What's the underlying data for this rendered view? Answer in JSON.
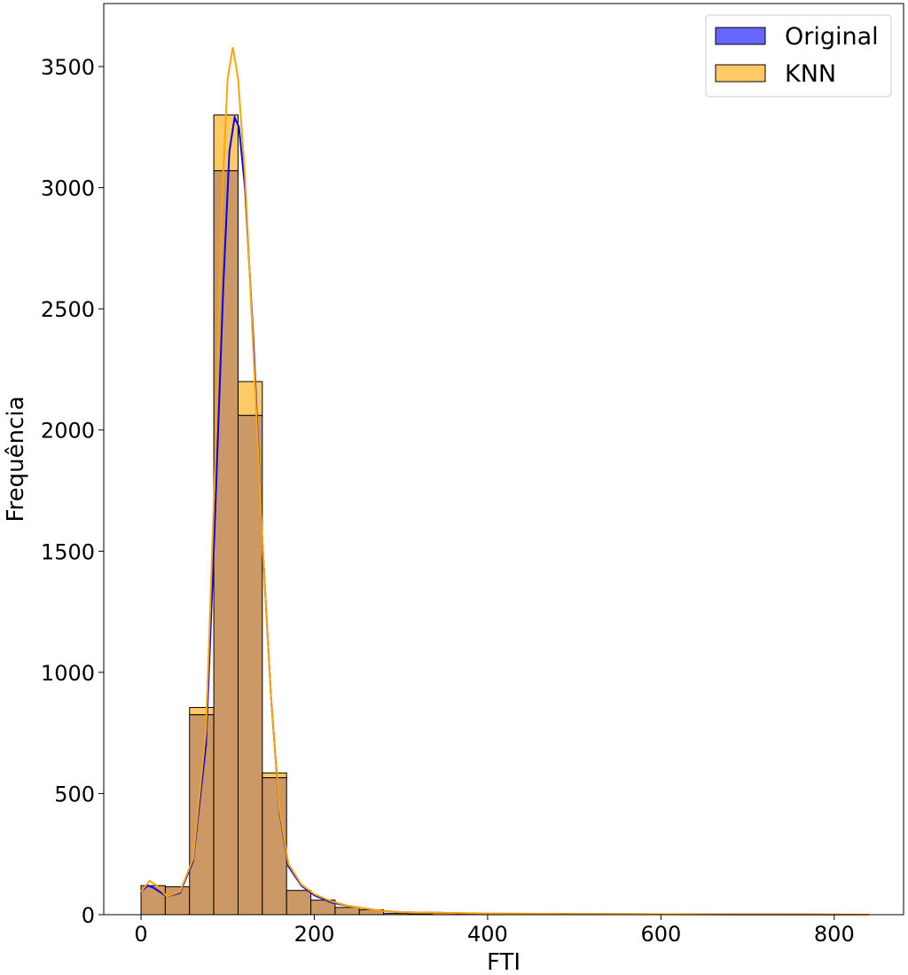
{
  "chart_data": {
    "type": "bar",
    "subtype": "histogram-with-kde",
    "title": "",
    "xlabel": "FTI",
    "ylabel": "Frequência",
    "xlim": [
      -43,
      880
    ],
    "ylim": [
      0,
      3760
    ],
    "x_ticks": [
      0,
      200,
      400,
      600,
      800
    ],
    "y_ticks": [
      0,
      500,
      1000,
      1500,
      2000,
      2500,
      3000,
      3500
    ],
    "grid": false,
    "legend_position": "top-right",
    "bin_width": 28,
    "bin_start": 0,
    "colors": {
      "original": "#0000ff",
      "knn": "#ffa500",
      "overlap": "#cc9966",
      "edge": "#000000"
    },
    "series": [
      {
        "name": "Original",
        "color": "#0000ff",
        "values": [
          120,
          115,
          825,
          3070,
          2060,
          565,
          100,
          60,
          30,
          20,
          5,
          3,
          8,
          4,
          2,
          1,
          1,
          1,
          1,
          0,
          1,
          0,
          0,
          0,
          0,
          0,
          0,
          0,
          0,
          0
        ],
        "kde": [
          [
            0,
            95
          ],
          [
            8,
            120
          ],
          [
            15,
            110
          ],
          [
            30,
            75
          ],
          [
            45,
            90
          ],
          [
            60,
            220
          ],
          [
            75,
            700
          ],
          [
            85,
            1600
          ],
          [
            95,
            2600
          ],
          [
            102,
            3150
          ],
          [
            108,
            3290
          ],
          [
            113,
            3250
          ],
          [
            120,
            3000
          ],
          [
            130,
            2350
          ],
          [
            140,
            1550
          ],
          [
            150,
            900
          ],
          [
            160,
            420
          ],
          [
            170,
            200
          ],
          [
            185,
            120
          ],
          [
            200,
            80
          ],
          [
            220,
            50
          ],
          [
            240,
            35
          ],
          [
            260,
            25
          ],
          [
            280,
            15
          ],
          [
            300,
            10
          ],
          [
            340,
            8
          ],
          [
            400,
            4
          ],
          [
            500,
            3
          ],
          [
            600,
            2
          ],
          [
            700,
            1
          ],
          [
            840,
            0
          ]
        ]
      },
      {
        "name": "KNN",
        "color": "#ffa500",
        "values": [
          120,
          115,
          855,
          3300,
          2200,
          585,
          100,
          60,
          30,
          20,
          5,
          3,
          8,
          4,
          2,
          1,
          1,
          1,
          1,
          0,
          1,
          0,
          0,
          0,
          0,
          0,
          0,
          0,
          0,
          0
        ],
        "kde": [
          [
            0,
            95
          ],
          [
            10,
            140
          ],
          [
            18,
            120
          ],
          [
            30,
            75
          ],
          [
            45,
            95
          ],
          [
            60,
            230
          ],
          [
            75,
            760
          ],
          [
            85,
            1800
          ],
          [
            93,
            2900
          ],
          [
            100,
            3450
          ],
          [
            106,
            3580
          ],
          [
            112,
            3450
          ],
          [
            120,
            3050
          ],
          [
            130,
            2300
          ],
          [
            140,
            1550
          ],
          [
            150,
            900
          ],
          [
            160,
            430
          ],
          [
            170,
            210
          ],
          [
            185,
            125
          ],
          [
            200,
            85
          ],
          [
            220,
            55
          ],
          [
            240,
            35
          ],
          [
            260,
            25
          ],
          [
            280,
            15
          ],
          [
            300,
            10
          ],
          [
            340,
            8
          ],
          [
            400,
            5
          ],
          [
            450,
            4
          ],
          [
            500,
            3
          ],
          [
            600,
            2
          ],
          [
            700,
            1
          ],
          [
            840,
            0
          ]
        ]
      }
    ]
  }
}
